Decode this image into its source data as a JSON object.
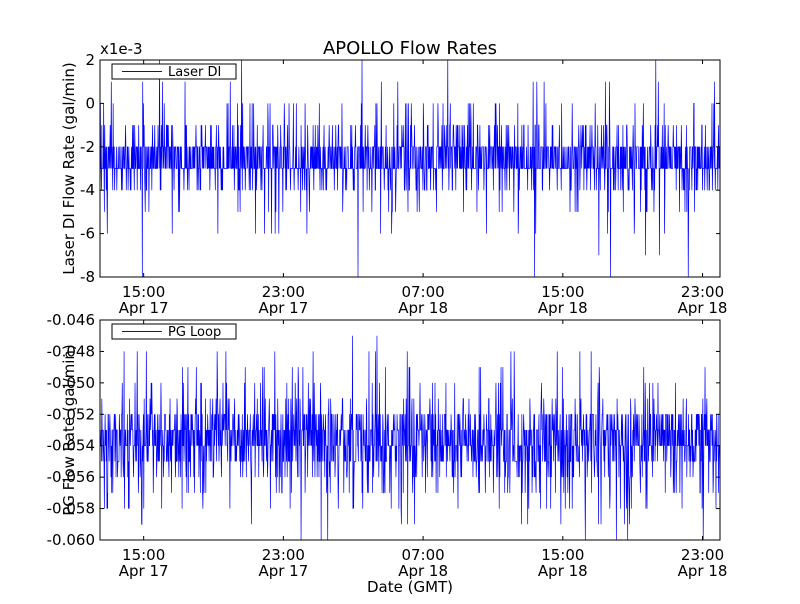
{
  "figure": {
    "title": "APOLLO Flow Rates",
    "xlabel": "Date (GMT)"
  },
  "chart_data": [
    {
      "type": "line",
      "ylabel": "Laser DI Flow Rate (gal/min)",
      "offset_text": "x1e-3",
      "ylim": [
        -0.008,
        0.002
      ],
      "y_ticks": [
        "2",
        "0",
        "-2",
        "-4",
        "-6",
        "-8"
      ],
      "y_tick_values": [
        0.002,
        0,
        -0.002,
        -0.004,
        -0.006,
        -0.008
      ],
      "x_range": [
        "2013-04-17T12:30",
        "2013-04-19T00:00"
      ],
      "x_ticks": [
        {
          "time": "15:00",
          "date": "Apr 17",
          "at": "2013-04-17T15:00"
        },
        {
          "time": "23:00",
          "date": "Apr 17",
          "at": "2013-04-17T23:00"
        },
        {
          "time": "07:00",
          "date": "Apr 18",
          "at": "2013-04-18T07:00"
        },
        {
          "time": "15:00",
          "date": "Apr 18",
          "at": "2013-04-18T15:00"
        },
        {
          "time": "23:00",
          "date": "Apr 18",
          "at": "2013-04-18T23:00"
        }
      ],
      "grid": false,
      "legend": "top-left",
      "series": [
        {
          "name": "Laser DI",
          "color": "#0000ff",
          "typical_range": [
            -0.004,
            -0.001
          ],
          "levels": [
            0.002,
            0.001,
            0,
            -0.001,
            -0.002,
            -0.003,
            -0.004,
            -0.005,
            -0.006,
            -0.007,
            -0.008
          ],
          "level_weights": [
            0.1,
            0.5,
            2,
            6,
            20,
            26,
            6,
            1.5,
            0.5,
            0.15,
            0.1
          ]
        }
      ]
    },
    {
      "type": "line",
      "ylabel": "PG Flow Rate (gal/min)",
      "ylim": [
        -0.06,
        -0.046
      ],
      "y_ticks": [
        "-0.046",
        "-0.048",
        "-0.050",
        "-0.052",
        "-0.054",
        "-0.056",
        "-0.058",
        "-0.060"
      ],
      "y_tick_values": [
        -0.046,
        -0.048,
        -0.05,
        -0.052,
        -0.054,
        -0.056,
        -0.058,
        -0.06
      ],
      "x_range": [
        "2013-04-17T12:30",
        "2013-04-19T00:00"
      ],
      "x_ticks": [
        {
          "time": "15:00",
          "date": "Apr 17",
          "at": "2013-04-17T15:00"
        },
        {
          "time": "23:00",
          "date": "Apr 17",
          "at": "2013-04-17T23:00"
        },
        {
          "time": "07:00",
          "date": "Apr 18",
          "at": "2013-04-18T07:00"
        },
        {
          "time": "15:00",
          "date": "Apr 18",
          "at": "2013-04-18T15:00"
        },
        {
          "time": "23:00",
          "date": "Apr 18",
          "at": "2013-04-18T23:00"
        }
      ],
      "grid": false,
      "legend": "top-left",
      "series": [
        {
          "name": "PG Loop",
          "color": "#0000ff",
          "typical_range": [
            -0.056,
            -0.052
          ],
          "levels": [
            -0.047,
            -0.048,
            -0.049,
            -0.05,
            -0.051,
            -0.052,
            -0.053,
            -0.054,
            -0.055,
            -0.056,
            -0.057,
            -0.058,
            -0.059,
            -0.06
          ],
          "level_weights": [
            0.1,
            0.6,
            1.2,
            2,
            4,
            14,
            20,
            20,
            14,
            6,
            3,
            1.6,
            0.6,
            0.3
          ]
        }
      ]
    }
  ]
}
